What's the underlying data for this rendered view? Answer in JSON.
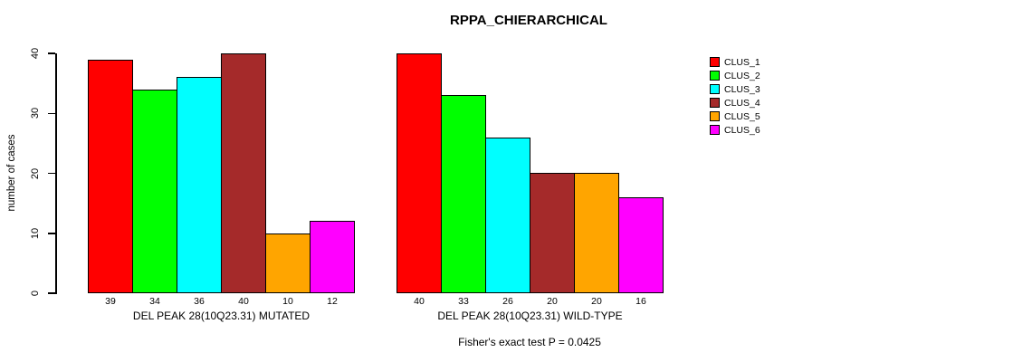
{
  "figure": {
    "background": "#ffffff"
  },
  "chart_data": [
    {
      "type": "bar",
      "title": "RPPA_CHIERARCHICAL",
      "xlabel": "DEL PEAK 28(10Q23.31) MUTATED",
      "ylabel": "number of cases",
      "categories": [
        "CLUS_1",
        "CLUS_2",
        "CLUS_3",
        "CLUS_4",
        "CLUS_5",
        "CLUS_6"
      ],
      "values": [
        39,
        34,
        36,
        40,
        10,
        12
      ],
      "colors": [
        "#FF0000",
        "#00FF00",
        "#00FFFF",
        "#A52A2A",
        "#FFA500",
        "#FF00FF"
      ],
      "ylim": [
        0,
        40
      ],
      "yticks": [
        0,
        10,
        20,
        30,
        40
      ],
      "grid": false,
      "bar_value_labels_shown": true
    },
    {
      "type": "bar",
      "xlabel": "DEL PEAK 28(10Q23.31) WILD-TYPE",
      "categories": [
        "CLUS_1",
        "CLUS_2",
        "CLUS_3",
        "CLUS_4",
        "CLUS_5",
        "CLUS_6"
      ],
      "values": [
        40,
        33,
        26,
        20,
        20,
        16
      ],
      "colors": [
        "#FF0000",
        "#00FF00",
        "#00FFFF",
        "#A52A2A",
        "#FFA500",
        "#FF00FF"
      ],
      "ylim": [
        0,
        40
      ],
      "yticks": [
        0,
        10,
        20,
        30,
        40
      ],
      "grid": false,
      "bar_value_labels_shown": true
    }
  ],
  "legend": {
    "position": "right",
    "items": [
      {
        "label": "CLUS_1",
        "color": "#FF0000"
      },
      {
        "label": "CLUS_2",
        "color": "#00FF00"
      },
      {
        "label": "CLUS_3",
        "color": "#00FFFF"
      },
      {
        "label": "CLUS_4",
        "color": "#A52A2A"
      },
      {
        "label": "CLUS_5",
        "color": "#FFA500"
      },
      {
        "label": "CLUS_6",
        "color": "#FF00FF"
      }
    ]
  },
  "annotation": "Fisher's exact test P = 0.0425"
}
